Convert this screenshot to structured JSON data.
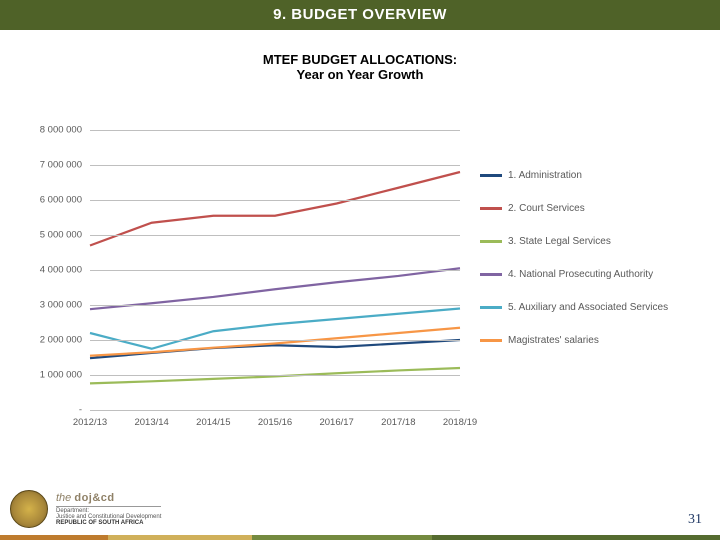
{
  "header": {
    "title": "9. BUDGET OVERVIEW",
    "bg": "#4f6228",
    "fg": "#ffffff"
  },
  "subtitle": {
    "line1": "MTEF BUDGET ALLOCATIONS:",
    "line2": "Year on Year Growth"
  },
  "chart": {
    "type": "line",
    "x_categories": [
      "2012/13",
      "2013/14",
      "2014/15",
      "2015/16",
      "2016/17",
      "2017/18",
      "2018/19"
    ],
    "y_min": 0,
    "y_max": 8000000,
    "y_step": 1000000,
    "y_tick_labels": [
      "-",
      "1 000 000",
      "2 000 000",
      "3 000 000",
      "4 000 000",
      "5 000 000",
      "6 000 000",
      "7 000 000",
      "8 000 000"
    ],
    "grid_color": "#bfbfbf",
    "background_color": "#ffffff",
    "axis_label_fontsize": 9.5,
    "legend_fontsize": 10,
    "line_width": 2.2,
    "series": [
      {
        "name": "1. Administration",
        "color": "#1f497d",
        "values": [
          1480000,
          1630000,
          1770000,
          1850000,
          1800000,
          1900000,
          2000000
        ]
      },
      {
        "name": "2. Court Services",
        "color": "#c0504d",
        "values": [
          4700000,
          5350000,
          5550000,
          5550000,
          5900000,
          6350000,
          6800000
        ]
      },
      {
        "name": "3. State Legal Services",
        "color": "#9bbb59",
        "values": [
          760000,
          820000,
          890000,
          960000,
          1050000,
          1130000,
          1200000
        ]
      },
      {
        "name": "4. National Prosecuting Authority",
        "color": "#8064a2",
        "values": [
          2880000,
          3050000,
          3230000,
          3450000,
          3650000,
          3830000,
          4050000
        ]
      },
      {
        "name": "5. Auxiliary and Associated Services",
        "color": "#4bacc6",
        "values": [
          2200000,
          1750000,
          2250000,
          2450000,
          2600000,
          2750000,
          2900000
        ]
      },
      {
        "name": "Magistrates' salaries",
        "color": "#f79646",
        "values": [
          1550000,
          1650000,
          1780000,
          1900000,
          2050000,
          2200000,
          2350000
        ]
      }
    ]
  },
  "footer": {
    "bar_colors": [
      "#be7b2e",
      "#d0b05a",
      "#748a3f",
      "#556b2f"
    ],
    "page_number": "31",
    "logo": {
      "brand_prefix": "the ",
      "brand": "doj&cd",
      "dept": "Department:",
      "full": "Justice and Constitutional Development",
      "country": "REPUBLIC OF SOUTH AFRICA"
    }
  }
}
